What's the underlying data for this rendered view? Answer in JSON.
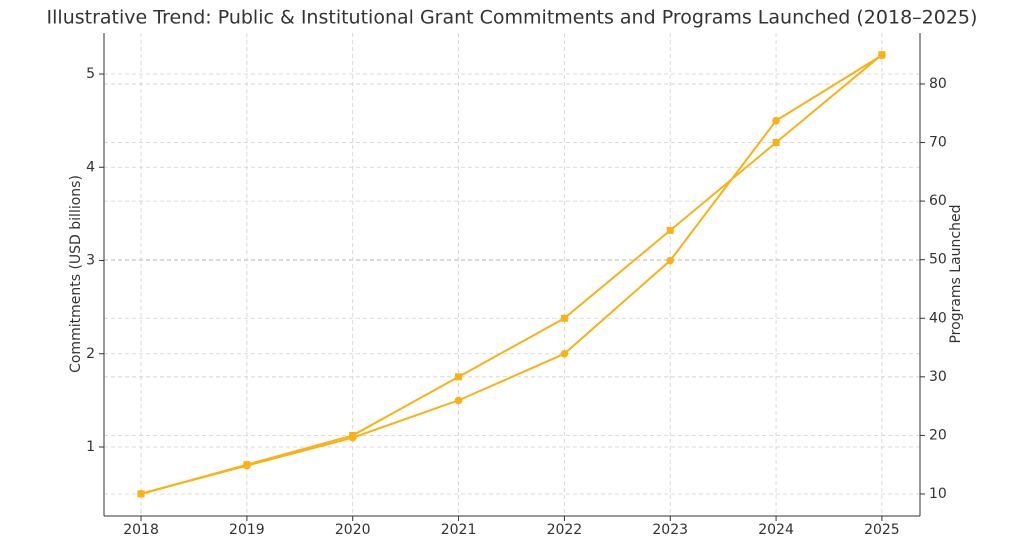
{
  "chart_data": {
    "type": "line",
    "title": "Illustrative Trend: Public & Institutional Grant Commitments and Programs Launched (2018–2025)",
    "y_label": "Commitments (USD billions)",
    "y2_label": "Programs Launched",
    "x": [
      2018,
      2019,
      2020,
      2021,
      2022,
      2023,
      2024,
      2025
    ],
    "xlim": [
      2017.65,
      2025.36
    ],
    "xticks": [
      2018,
      2019,
      2020,
      2021,
      2022,
      2023,
      2024,
      2025
    ],
    "ylim": [
      0.26,
      5.44
    ],
    "yticks": [
      1,
      2,
      3,
      4,
      5
    ],
    "y2lim": [
      6.24,
      88.7
    ],
    "y2ticks": [
      10,
      20,
      30,
      40,
      50,
      60,
      70,
      80
    ],
    "grid": true,
    "series": [
      {
        "color": "#f9b115",
        "marker": "circle",
        "values": [
          0.5,
          0.8,
          1.1,
          1.5,
          2.0,
          3.0,
          4.5,
          5.2
        ]
      },
      {
        "color": "#f9b115",
        "marker": "square",
        "axis": "y2",
        "values": [
          10,
          15,
          20,
          30,
          40,
          55,
          70,
          85
        ]
      }
    ]
  }
}
